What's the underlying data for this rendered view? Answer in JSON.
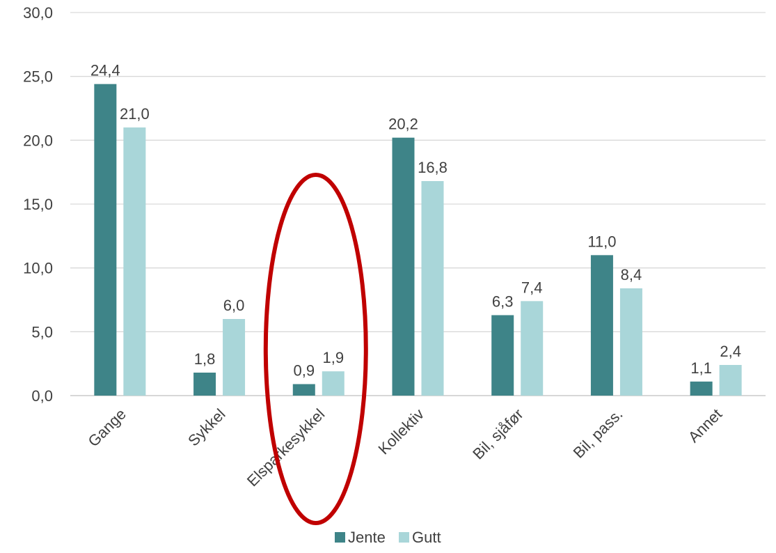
{
  "chart_data": {
    "type": "bar",
    "categories": [
      "Gange",
      "Sykkel",
      "Elsparkesykkel",
      "Kollektiv",
      "Bil, sjåfør",
      "Bil, pass.",
      "Annet"
    ],
    "series": [
      {
        "name": "Jente",
        "values": [
          24.4,
          1.8,
          0.9,
          20.2,
          6.3,
          11.0,
          1.1
        ],
        "labels": [
          "24,4",
          "1,8",
          "0,9",
          "20,2",
          "6,3",
          "11,0",
          "1,1"
        ],
        "color": "#3e8488"
      },
      {
        "name": "Gutt",
        "values": [
          21.0,
          6.0,
          1.9,
          16.8,
          7.4,
          8.4,
          2.4
        ],
        "labels": [
          "21,0",
          "6,0",
          "1,9",
          "16,8",
          "7,4",
          "8,4",
          "2,4"
        ],
        "color": "#a9d6d9"
      }
    ],
    "yticks": [
      "0,0",
      "5,0",
      "10,0",
      "15,0",
      "20,0",
      "25,0",
      "30,0"
    ],
    "ylim": [
      0,
      30
    ],
    "grid": true,
    "legend": "bottom",
    "highlight": {
      "category": "Elsparkesykkel",
      "shape": "ellipse",
      "color": "#c00000"
    }
  }
}
